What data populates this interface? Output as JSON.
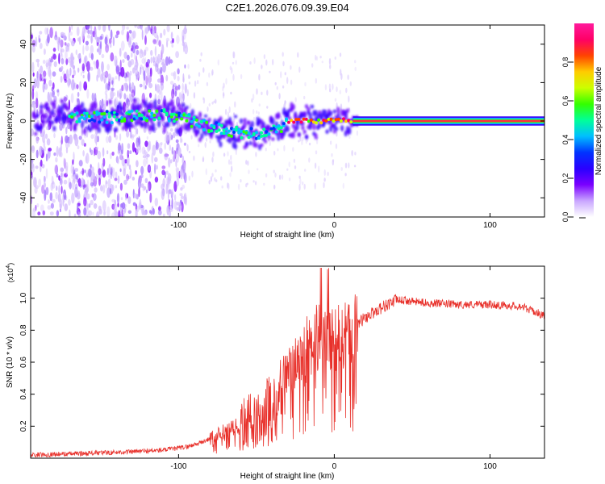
{
  "title": "C2E1.2026.076.09.39.E04",
  "chart_data": [
    {
      "type": "heatmap",
      "name": "spectrogram",
      "xlabel": "Height of straight line (km)",
      "ylabel": "Frequency (Hz)",
      "xlim": [
        -195,
        135
      ],
      "ylim": [
        -50,
        50
      ],
      "xticks": [
        -100,
        0,
        100
      ],
      "yticks": [
        -40,
        -20,
        0,
        20,
        40
      ],
      "colorbar": {
        "label": "Normalized spectral amplitude",
        "range": [
          0,
          1
        ],
        "ticks": [
          0.0,
          0.2,
          0.4,
          0.6,
          0.8
        ],
        "colormap": [
          "#ffffff",
          "#c9a6ff",
          "#7a00ff",
          "#2a00ff",
          "#0033ff",
          "#00bfff",
          "#00ff99",
          "#33ff00",
          "#ccff00",
          "#ffcc00",
          "#ff4400",
          "#ff0066",
          "#ff1a9c"
        ]
      },
      "ridge": {
        "description": "frequency center of the strong signal vs height",
        "x": [
          -170,
          -140,
          -110,
          -95,
          -85,
          -75,
          -65,
          -55,
          -45,
          -35,
          -30,
          -25,
          -15,
          -5,
          0,
          10,
          30,
          60,
          100,
          135
        ],
        "freq": [
          2,
          2,
          3,
          1,
          -2,
          -4,
          -6,
          -7,
          -6,
          -3,
          -1,
          0,
          0,
          0,
          1,
          0,
          0,
          0,
          0,
          0
        ]
      }
    },
    {
      "type": "line",
      "name": "snr",
      "xlabel": "Height of straight line (km)",
      "ylabel": "SNR (10 * v/v)",
      "yscale_label": "(x10",
      "yscale_exp": "4",
      "yscale_close": ")",
      "xlim": [
        -195,
        135
      ],
      "ylim": [
        0,
        1.2
      ],
      "xticks": [
        -100,
        0,
        100
      ],
      "yticks": [
        0.2,
        0.4,
        0.6,
        0.8,
        1.0
      ],
      "color": "#e8302a",
      "envelope": {
        "x": [
          -195,
          -160,
          -130,
          -110,
          -95,
          -85,
          -75,
          -65,
          -55,
          -45,
          -35,
          -25,
          -15,
          -8,
          0,
          5,
          10,
          20,
          30,
          40,
          60,
          80,
          100,
          120,
          135
        ],
        "y": [
          0.02,
          0.03,
          0.04,
          0.05,
          0.07,
          0.1,
          0.14,
          0.18,
          0.22,
          0.3,
          0.45,
          0.6,
          0.7,
          0.78,
          0.72,
          0.76,
          0.8,
          0.88,
          0.94,
          0.99,
          0.97,
          0.96,
          0.96,
          0.95,
          0.89
        ]
      }
    }
  ]
}
